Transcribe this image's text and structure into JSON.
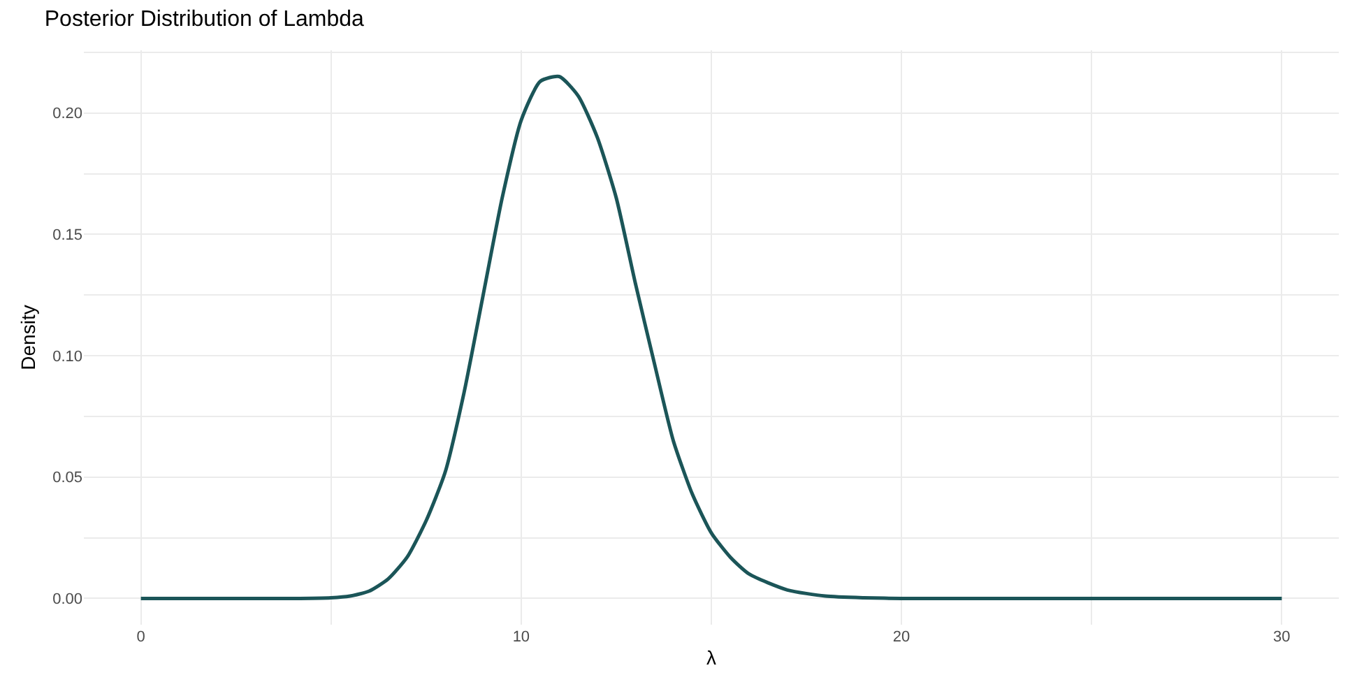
{
  "chart_data": {
    "type": "line",
    "title": "Posterior Distribution of Lambda",
    "xlabel": "λ",
    "ylabel": "Density",
    "x": [
      0,
      2,
      4,
      5,
      5.5,
      6,
      6.5,
      7,
      7.5,
      8,
      8.5,
      9,
      9.5,
      10,
      10.5,
      11,
      11.5,
      12,
      12.5,
      13,
      13.5,
      14,
      14.5,
      15,
      15.5,
      16,
      17,
      18,
      19,
      20,
      25,
      30
    ],
    "series": [
      {
        "color": "#1b5558",
        "values": [
          0,
          0,
          0,
          0.0003,
          0.001,
          0.003,
          0.008,
          0.017,
          0.032,
          0.052,
          0.085,
          0.125,
          0.165,
          0.197,
          0.213,
          0.215,
          0.207,
          0.19,
          0.165,
          0.13,
          0.097,
          0.065,
          0.043,
          0.027,
          0.017,
          0.01,
          0.0035,
          0.001,
          0.0003,
          0,
          0,
          0
        ]
      }
    ],
    "xlim": [
      -1.5,
      31.5
    ],
    "ylim": [
      -0.0108,
      0.2258
    ],
    "xticks": [
      0,
      {
        "value": 5,
        "label": null
      },
      10,
      {
        "value": 15,
        "label": null
      },
      20,
      {
        "value": 25,
        "label": null
      },
      30
    ],
    "yticks": [
      {
        "value": 0,
        "label": "0.00"
      },
      {
        "value": 0.025,
        "label": null
      },
      {
        "value": 0.05,
        "label": "0.05"
      },
      {
        "value": 0.075,
        "label": null
      },
      {
        "value": 0.1,
        "label": "0.10"
      },
      {
        "value": 0.125,
        "label": null
      },
      {
        "value": 0.15,
        "label": "0.15"
      },
      {
        "value": 0.175,
        "label": null
      },
      {
        "value": 0.2,
        "label": "0.20"
      },
      {
        "value": 0.225,
        "label": null
      }
    ],
    "grid": true,
    "marker": "none",
    "line_style": "solid"
  }
}
